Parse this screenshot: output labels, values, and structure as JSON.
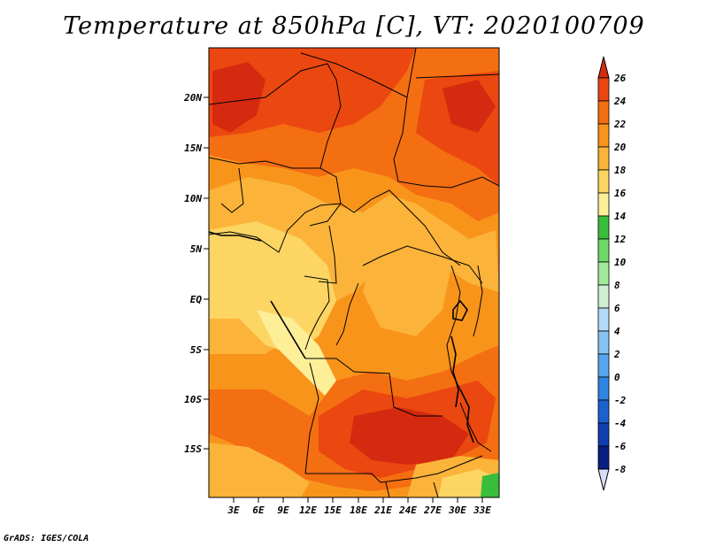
{
  "title": "Temperature at 850hPa [C], VT: 2020100709",
  "credit": "GrADS: IGES/COLA",
  "lat_labels": [
    "20N",
    "15N",
    "10N",
    "5N",
    "EQ",
    "5S",
    "10S",
    "15S"
  ],
  "lon_labels": [
    "3E",
    "6E",
    "9E",
    "12E",
    "15E",
    "18E",
    "21E",
    "24E",
    "27E",
    "30E",
    "33E"
  ],
  "colorbar": {
    "levels": [
      "26",
      "24",
      "22",
      "20",
      "18",
      "16",
      "14",
      "12",
      "10",
      "8",
      "6",
      "4",
      "2",
      "0",
      "-2",
      "-4",
      "-6",
      "-8"
    ],
    "colors": [
      "#d52a0f",
      "#ea4810",
      "#f46e12",
      "#f8941a",
      "#fbb33a",
      "#fcd563",
      "#fdee98",
      "#39be3b",
      "#6fd86a",
      "#a3eb9c",
      "#cfeed3",
      "#b4dcf8",
      "#87c4f3",
      "#57a7ee",
      "#2e85e3",
      "#1b62cf",
      "#0f3eb0",
      "#0a1d80",
      "#081058",
      "#d8dcf5"
    ]
  }
}
